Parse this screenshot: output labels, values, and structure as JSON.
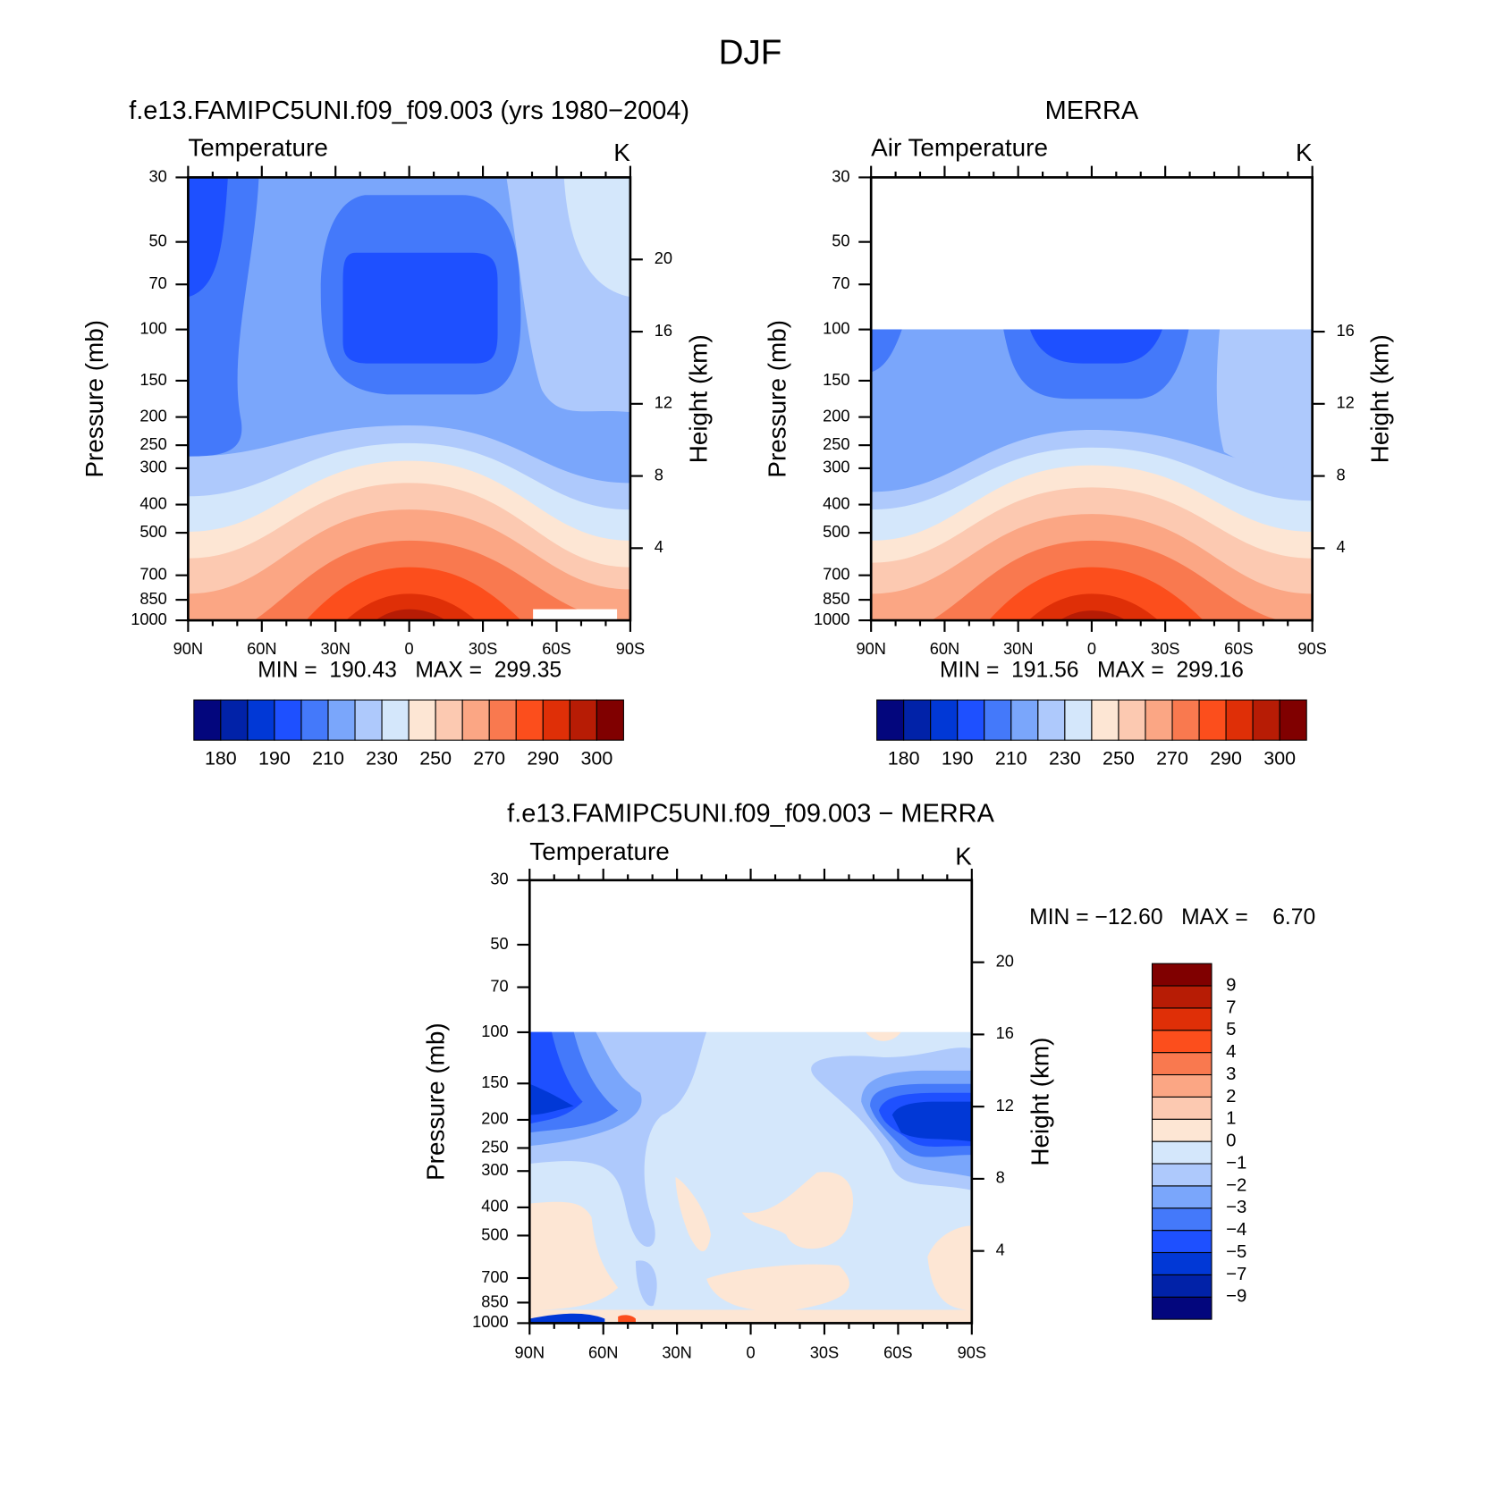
{
  "title": "DJF",
  "chart_data": [
    {
      "type": "contour",
      "title": "f.e13.FAMIPC5UNI.f09_f09.003 (yrs 1980−2004)",
      "subtitle": "Temperature",
      "units": "K",
      "ylabel": "Pressure (mb)",
      "y2label": "Height (km)",
      "log_y": true,
      "xlim": [
        90,
        -90
      ],
      "xticks": [
        {
          "value": 90,
          "label": "90N"
        },
        {
          "value": 60,
          "label": "60N"
        },
        {
          "value": 30,
          "label": "30N"
        },
        0,
        {
          "value": -30,
          "label": "30S"
        },
        {
          "value": -60,
          "label": "60S"
        },
        {
          "value": -90,
          "label": "90S"
        }
      ],
      "ylim": [
        1000,
        30
      ],
      "yticks": [
        30,
        50,
        70,
        100,
        150,
        200,
        250,
        300,
        400,
        500,
        700,
        850,
        1000
      ],
      "y2lim": [
        0,
        24.55
      ],
      "y2ticks": [
        20,
        16,
        12,
        8,
        4
      ],
      "min_max": "MIN =  190.43   MAX =  299.35",
      "levels": [
        180,
        185,
        190,
        200,
        210,
        220,
        230,
        240,
        250,
        260,
        270,
        280,
        290,
        295,
        300
      ],
      "level_ticks": [
        180,
        190,
        210,
        230,
        250,
        270,
        290,
        300
      ],
      "colorbar": "horizontal",
      "colors": [
        "#03067d",
        "#0122a8",
        "#0138d6",
        "#1e50ff",
        "#4479fa",
        "#7aa6fb",
        "#aec9fc",
        "#d4e7fb",
        "#fde6d4",
        "#fcc9b1",
        "#fba684",
        "#f9794f",
        "#fc4e1c",
        "#df2f07",
        "#b71c05",
        "#800000"
      ]
    },
    {
      "type": "contour",
      "title": "MERRA",
      "subtitle": "Air Temperature",
      "units": "K",
      "ylabel": "Pressure (mb)",
      "y2label": "Height (km)",
      "log_y": true,
      "xlim": [
        90,
        -90
      ],
      "xticks": [
        {
          "value": 90,
          "label": "90N"
        },
        {
          "value": 60,
          "label": "60N"
        },
        {
          "value": 30,
          "label": "30N"
        },
        0,
        {
          "value": -30,
          "label": "30S"
        },
        {
          "value": -60,
          "label": "60S"
        },
        {
          "value": -90,
          "label": "90S"
        }
      ],
      "ylim": [
        1000,
        30
      ],
      "yticks": [
        30,
        50,
        70,
        100,
        150,
        200,
        250,
        300,
        400,
        500,
        700,
        850,
        1000
      ],
      "y2lim": [
        0,
        24.55
      ],
      "y2ticks": [
        16,
        12,
        8,
        4
      ],
      "min_max": "MIN =  191.56   MAX =  299.16",
      "levels": [
        180,
        185,
        190,
        200,
        210,
        220,
        230,
        240,
        250,
        260,
        270,
        280,
        290,
        295,
        300
      ],
      "level_ticks": [
        180,
        190,
        210,
        230,
        250,
        270,
        290,
        300
      ],
      "colorbar": "horizontal",
      "colors": [
        "#03067d",
        "#0122a8",
        "#0138d6",
        "#1e50ff",
        "#4479fa",
        "#7aa6fb",
        "#aec9fc",
        "#d4e7fb",
        "#fde6d4",
        "#fcc9b1",
        "#fba684",
        "#f9794f",
        "#fc4e1c",
        "#df2f07",
        "#b71c05",
        "#800000"
      ]
    },
    {
      "type": "contour",
      "title": "f.e13.FAMIPC5UNI.f09_f09.003 − MERRA",
      "subtitle": "Temperature",
      "units": "K",
      "ylabel": "Pressure (mb)",
      "y2label": "Height (km)",
      "log_y": true,
      "xlim": [
        90,
        -90
      ],
      "xticks": [
        {
          "value": 90,
          "label": "90N"
        },
        {
          "value": 60,
          "label": "60N"
        },
        {
          "value": 30,
          "label": "30N"
        },
        0,
        {
          "value": -30,
          "label": "30S"
        },
        {
          "value": -60,
          "label": "60S"
        },
        {
          "value": -90,
          "label": "90S"
        }
      ],
      "ylim": [
        1000,
        30
      ],
      "yticks": [
        30,
        50,
        70,
        100,
        150,
        200,
        250,
        300,
        400,
        500,
        700,
        850,
        1000
      ],
      "y2lim": [
        0,
        24.55
      ],
      "y2ticks": [
        20,
        16,
        12,
        8,
        4
      ],
      "min_max": "MIN = −12.60   MAX =    6.70",
      "levels": [
        -9,
        -7,
        -5,
        -4,
        -3,
        -2,
        -1,
        0,
        1,
        2,
        3,
        4,
        5,
        7,
        9
      ],
      "level_ticks": [
        {
          "value": -9,
          "label": "−9"
        },
        {
          "value": -7,
          "label": "−7"
        },
        {
          "value": -5,
          "label": "−5"
        },
        {
          "value": -4,
          "label": "−4"
        },
        {
          "value": -3,
          "label": "−3"
        },
        {
          "value": -2,
          "label": "−2"
        },
        {
          "value": -1,
          "label": "−1"
        },
        0,
        1,
        2,
        3,
        4,
        5,
        7,
        9
      ],
      "colorbar": "vertical",
      "colors": [
        "#03067d",
        "#0122a8",
        "#0138d6",
        "#1e50ff",
        "#4479fa",
        "#7aa6fb",
        "#aec9fc",
        "#d4e7fb",
        "#fde6d4",
        "#fcc9b1",
        "#fba684",
        "#f9794f",
        "#fc4e1c",
        "#df2f07",
        "#b71c05",
        "#800000"
      ]
    }
  ]
}
